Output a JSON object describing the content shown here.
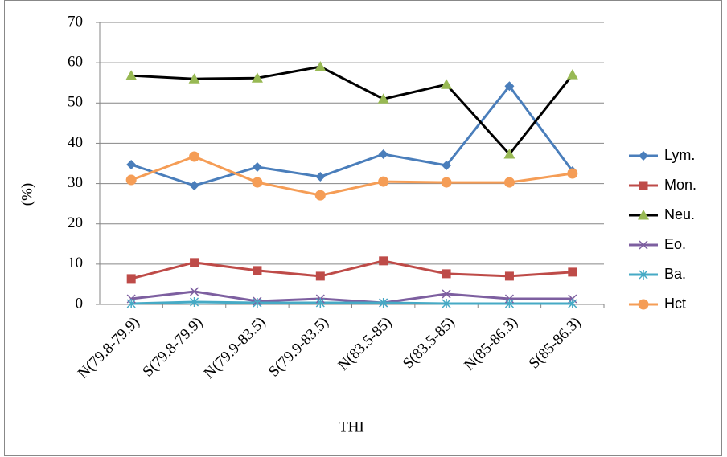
{
  "chart_data": {
    "type": "line",
    "x_label": "THI",
    "y_label": "(%)",
    "categories": [
      "N(79.8-79.9)",
      "S(79.8-79.9)",
      "N(79.9-83.5)",
      "S(79.9-83.5)",
      "N(83.5-85)",
      "S(83.5-85)",
      "N(85-86.3)",
      "S(85-86.3)"
    ],
    "series": [
      {
        "name": "Lym.",
        "color": "#4a7ebb",
        "marker": "diamond",
        "values": [
          34.7,
          29.5,
          34.1,
          31.7,
          37.3,
          34.5,
          54.2,
          33.1
        ]
      },
      {
        "name": "Mon.",
        "color": "#be4b48",
        "marker": "square",
        "values": [
          6.4,
          10.4,
          8.4,
          7.0,
          10.8,
          7.6,
          7.0,
          8.0
        ]
      },
      {
        "name": "Neu.",
        "color": "#000000",
        "marker_color": "#98b954",
        "marker": "triangle",
        "values": [
          56.8,
          56.0,
          56.2,
          59.0,
          51.0,
          54.6,
          37.3,
          57.0
        ]
      },
      {
        "name": "Eo.",
        "color": "#7d5fa0",
        "marker": "x",
        "values": [
          1.4,
          3.2,
          0.8,
          1.4,
          0.4,
          2.6,
          1.4,
          1.4
        ]
      },
      {
        "name": "Ba.",
        "color": "#46aac5",
        "marker": "star",
        "values": [
          0.2,
          0.6,
          0.4,
          0.4,
          0.4,
          0.2,
          0.2,
          0.2
        ]
      },
      {
        "name": "Hct",
        "color": "#f59d56",
        "marker": "circle",
        "values": [
          30.9,
          36.7,
          30.3,
          27.1,
          30.5,
          30.3,
          30.3,
          32.5
        ]
      }
    ],
    "ylim": [
      0,
      70
    ],
    "yticks": [
      0,
      10,
      20,
      30,
      40,
      50,
      60,
      70
    ],
    "grid": true,
    "legend": "right"
  }
}
